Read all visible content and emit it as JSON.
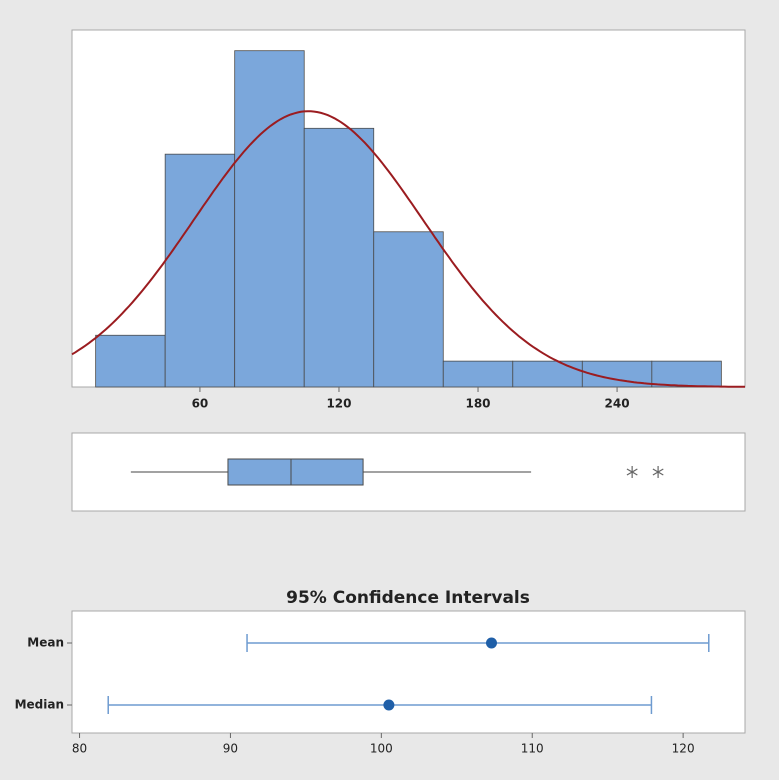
{
  "chart_data": [
    {
      "type": "histogram",
      "bins": [
        15,
        45,
        75,
        105,
        135,
        165,
        195,
        225,
        255,
        285
      ],
      "counts": [
        2,
        9,
        13,
        10,
        6,
        1,
        1,
        1,
        1
      ],
      "color": "#7ba7db",
      "xlim": [
        4.8,
        295.2
      ],
      "ylim": [
        0,
        13.8
      ],
      "xticks": [
        60,
        120,
        180,
        240
      ],
      "curve": {
        "mean": 106.8,
        "sd": 49.4,
        "color": "#9b1c20"
      }
    },
    {
      "type": "box",
      "min": 30.2,
      "q1": 72.1,
      "median": 99.3,
      "q3": 130.4,
      "max": 202.9,
      "outliers": [
        246.5,
        257.7
      ],
      "color": "#7ba7db",
      "xlim": [
        4.8,
        295.2
      ]
    },
    {
      "type": "interval",
      "title": "95% Confidence Intervals",
      "categories": [
        "Mean",
        "Median"
      ],
      "estimates": [
        107.3,
        100.5
      ],
      "lower": [
        91.1,
        81.9
      ],
      "upper": [
        121.7,
        117.9
      ],
      "color": "#1f5fa8",
      "line_color": "#6e9bd0",
      "xlim": [
        79.5,
        124.1
      ],
      "xticks": [
        80,
        90,
        100,
        110,
        120
      ]
    }
  ]
}
